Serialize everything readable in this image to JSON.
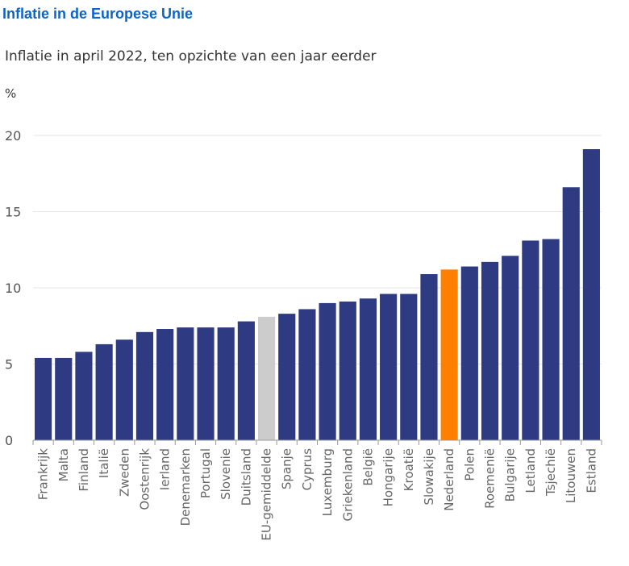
{
  "header": {
    "title": "Inflatie in de Europese Unie",
    "subtitle": "Inflatie in april 2022, ten opzichte van een jaar eerder",
    "unit": "%"
  },
  "colors": {
    "default_bar": "#2e3a82",
    "eu_average": "#cccccc",
    "netherlands": "#ff8000",
    "grid": "#e6e6e6",
    "axis": "#999999"
  },
  "chart_data": {
    "type": "bar",
    "title": "Inflatie in de Europese Unie",
    "subtitle": "Inflatie in april 2022, ten opzichte van een jaar eerder",
    "ylabel": "%",
    "xlabel": "",
    "ylim": [
      0,
      20
    ],
    "yticks": [
      0,
      5,
      10,
      15,
      20
    ],
    "grid": true,
    "categories": [
      "Frankrijk",
      "Malta",
      "Finland",
      "Italië",
      "Zweden",
      "Oostenrijk",
      "Ierland",
      "Denemarken",
      "Portugal",
      "Slovenie",
      "Duitsland",
      "EU-gemiddelde",
      "Spanje",
      "Cyprus",
      "Luxemburg",
      "Griekenland",
      "België",
      "Hongarije",
      "Kroatië",
      "Slowakije",
      "Nederland",
      "Polen",
      "Roemenië",
      "Bulgarije",
      "Letland",
      "Tsjechië",
      "Litouwen",
      "Estland"
    ],
    "values": [
      5.4,
      5.4,
      5.8,
      6.3,
      6.6,
      7.1,
      7.3,
      7.4,
      7.4,
      7.4,
      7.8,
      8.1,
      8.3,
      8.6,
      9.0,
      9.1,
      9.3,
      9.6,
      9.6,
      10.9,
      11.2,
      11.4,
      11.7,
      12.1,
      13.1,
      13.2,
      16.6,
      19.1
    ],
    "highlight": {
      "EU-gemiddelde": "eu_average",
      "Nederland": "netherlands"
    }
  }
}
